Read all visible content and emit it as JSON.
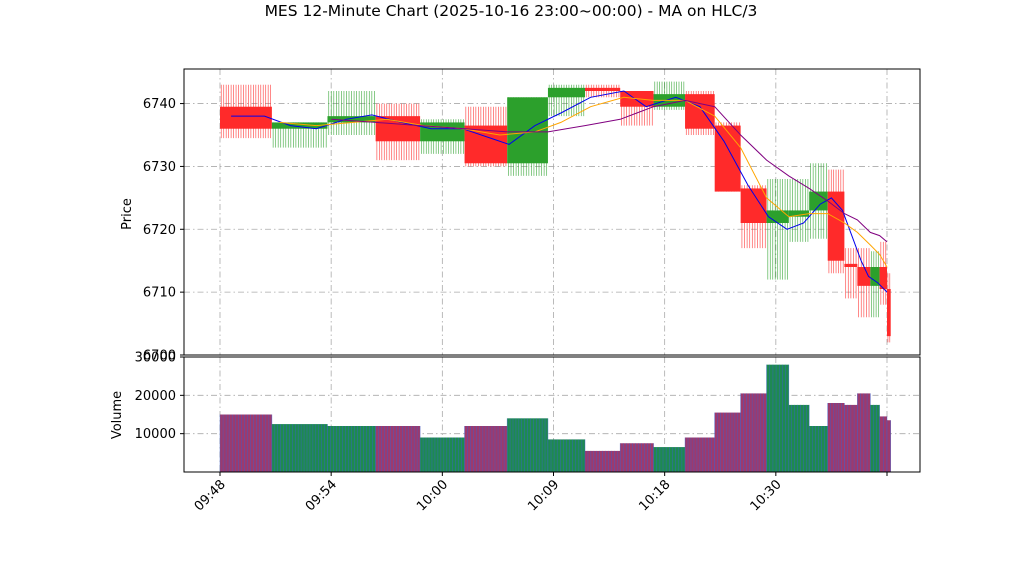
{
  "chart_data": {
    "type": "candlestick",
    "title": "MES 12-Minute Chart (2025-10-16 23:00~00:00) - MA on HLC/3",
    "price_panel": {
      "ylabel": "Price",
      "ylim": [
        6700,
        6745.5
      ],
      "yticks": [
        6700,
        6710,
        6720,
        6730,
        6740
      ],
      "grid": true
    },
    "volume_panel": {
      "ylabel": "Volume",
      "ylim": [
        0,
        30000
      ],
      "yticks": [
        10000,
        20000,
        30000
      ],
      "grid": true
    },
    "x_tick_labels": [
      {
        "label": "09:48",
        "minute": 0
      },
      {
        "label": "09:54",
        "minute": 6
      },
      {
        "label": "10:00",
        "minute": 12
      },
      {
        "label": "10:09",
        "minute": 18
      },
      {
        "label": "10:18",
        "minute": 24
      },
      {
        "label": "10:30",
        "minute": 30
      },
      {
        "label": "",
        "minute": 36
      }
    ],
    "candles": [
      {
        "start": 0.0,
        "end": 2.8,
        "open": 6739.5,
        "high": 6743.0,
        "low": 6734.5,
        "close": 6736.0,
        "volume": 15000
      },
      {
        "start": 2.8,
        "end": 5.8,
        "open": 6736.0,
        "high": 6737.0,
        "low": 6733.0,
        "close": 6737.0,
        "volume": 12500
      },
      {
        "start": 5.8,
        "end": 8.4,
        "open": 6737.0,
        "high": 6742.0,
        "low": 6735.0,
        "close": 6738.0,
        "volume": 12000
      },
      {
        "start": 8.4,
        "end": 10.8,
        "open": 6738.0,
        "high": 6740.0,
        "low": 6731.0,
        "close": 6734.0,
        "volume": 12000
      },
      {
        "start": 10.8,
        "end": 13.2,
        "open": 6734.0,
        "high": 6737.5,
        "low": 6732.0,
        "close": 6737.0,
        "volume": 9000
      },
      {
        "start": 13.2,
        "end": 15.5,
        "open": 6736.5,
        "high": 6739.5,
        "low": 6730.0,
        "close": 6730.5,
        "volume": 12000
      },
      {
        "start": 15.5,
        "end": 17.7,
        "open": 6730.5,
        "high": 6741.0,
        "low": 6728.5,
        "close": 6741.0,
        "volume": 14000
      },
      {
        "start": 17.7,
        "end": 19.7,
        "open": 6741.0,
        "high": 6743.0,
        "low": 6738.0,
        "close": 6742.5,
        "volume": 8500
      },
      {
        "start": 19.7,
        "end": 21.6,
        "open": 6742.5,
        "high": 6743.0,
        "low": 6741.0,
        "close": 6742.0,
        "volume": 5500
      },
      {
        "start": 21.6,
        "end": 23.4,
        "open": 6742.0,
        "high": 6742.0,
        "low": 6736.5,
        "close": 6739.5,
        "volume": 7500
      },
      {
        "start": 23.4,
        "end": 25.1,
        "open": 6739.5,
        "high": 6743.5,
        "low": 6739.0,
        "close": 6741.5,
        "volume": 6500
      },
      {
        "start": 25.1,
        "end": 26.7,
        "open": 6741.5,
        "high": 6742.0,
        "low": 6735.0,
        "close": 6736.0,
        "volume": 9000
      },
      {
        "start": 26.7,
        "end": 28.1,
        "open": 6736.5,
        "high": 6737.0,
        "low": 6726.0,
        "close": 6726.0,
        "volume": 15500
      },
      {
        "start": 28.1,
        "end": 29.5,
        "open": 6726.5,
        "high": 6727.0,
        "low": 6717.0,
        "close": 6721.0,
        "volume": 20500
      },
      {
        "start": 29.5,
        "end": 30.7,
        "open": 6721.0,
        "high": 6728.0,
        "low": 6712.0,
        "close": 6723.0,
        "volume": 28000
      },
      {
        "start": 30.7,
        "end": 31.8,
        "open": 6722.0,
        "high": 6728.0,
        "low": 6718.0,
        "close": 6723.0,
        "volume": 17500
      },
      {
        "start": 31.8,
        "end": 32.8,
        "open": 6723.0,
        "high": 6730.5,
        "low": 6718.5,
        "close": 6726.0,
        "volume": 12000
      },
      {
        "start": 32.8,
        "end": 33.7,
        "open": 6726.0,
        "high": 6729.5,
        "low": 6713.0,
        "close": 6715.0,
        "volume": 18000
      },
      {
        "start": 33.7,
        "end": 34.4,
        "open": 6714.5,
        "high": 6717.0,
        "low": 6709.0,
        "close": 6714.0,
        "volume": 17500
      },
      {
        "start": 34.4,
        "end": 35.1,
        "open": 6714.0,
        "high": 6717.0,
        "low": 6706.0,
        "close": 6711.0,
        "volume": 20500
      },
      {
        "start": 35.1,
        "end": 35.6,
        "open": 6711.0,
        "high": 6716.5,
        "low": 6706.0,
        "close": 6714.0,
        "volume": 17500
      },
      {
        "start": 35.6,
        "end": 36.0,
        "open": 6714.0,
        "high": 6718.0,
        "low": 6708.0,
        "close": 6710.5,
        "volume": 14500
      },
      {
        "start": 36.0,
        "end": 36.2,
        "open": 6710.5,
        "high": 6713.0,
        "low": 6702.0,
        "close": 6703.0,
        "volume": 13500
      }
    ],
    "ma_lines": [
      {
        "color": "#0000ee",
        "points": [
          [
            0.6,
            6738
          ],
          [
            2.4,
            6738
          ],
          [
            3.8,
            6736.5
          ],
          [
            5.2,
            6736
          ],
          [
            6.8,
            6737.5
          ],
          [
            8.2,
            6738.2
          ],
          [
            9.8,
            6737
          ],
          [
            11.4,
            6736
          ],
          [
            13.1,
            6736
          ],
          [
            14.6,
            6734.5
          ],
          [
            15.6,
            6733.5
          ],
          [
            17.0,
            6736.5
          ],
          [
            18.4,
            6738.5
          ],
          [
            20.0,
            6741
          ],
          [
            21.8,
            6742
          ],
          [
            23.0,
            6739.5
          ],
          [
            24.6,
            6741
          ],
          [
            25.9,
            6739.5
          ],
          [
            27.2,
            6734
          ],
          [
            28.5,
            6727
          ],
          [
            29.6,
            6722
          ],
          [
            30.6,
            6720
          ],
          [
            31.5,
            6721
          ],
          [
            32.4,
            6724
          ],
          [
            33.0,
            6725
          ],
          [
            33.6,
            6723
          ],
          [
            34.1,
            6719
          ],
          [
            34.6,
            6715
          ],
          [
            35.0,
            6712.5
          ],
          [
            35.5,
            6711.5
          ],
          [
            36.0,
            6710
          ]
        ]
      },
      {
        "color": "#ffa500",
        "points": [
          [
            3.2,
            6737
          ],
          [
            5.2,
            6736.5
          ],
          [
            7.2,
            6737
          ],
          [
            9.0,
            6737.5
          ],
          [
            11.0,
            6736.5
          ],
          [
            13.1,
            6736
          ],
          [
            15.1,
            6735
          ],
          [
            17.0,
            6735.5
          ],
          [
            18.4,
            6737
          ],
          [
            20.0,
            6739.5
          ],
          [
            21.8,
            6741
          ],
          [
            23.4,
            6740.5
          ],
          [
            25.1,
            6740.5
          ],
          [
            26.7,
            6738
          ],
          [
            28.1,
            6733
          ],
          [
            29.5,
            6725
          ],
          [
            30.7,
            6722
          ],
          [
            31.8,
            6722.5
          ],
          [
            32.8,
            6722.5
          ],
          [
            33.7,
            6721
          ],
          [
            34.4,
            6719.5
          ],
          [
            35.1,
            6717.5
          ],
          [
            35.6,
            6716
          ],
          [
            36.0,
            6714
          ]
        ]
      },
      {
        "color": "#800080",
        "points": [
          [
            6.0,
            6737.5
          ],
          [
            8.4,
            6737
          ],
          [
            10.8,
            6736.5
          ],
          [
            13.2,
            6736
          ],
          [
            15.5,
            6735.5
          ],
          [
            17.7,
            6735.5
          ],
          [
            19.7,
            6736.5
          ],
          [
            21.6,
            6737.5
          ],
          [
            23.4,
            6739.5
          ],
          [
            25.1,
            6740.5
          ],
          [
            26.7,
            6739.5
          ],
          [
            28.1,
            6735
          ],
          [
            29.5,
            6731
          ],
          [
            30.7,
            6728.5
          ],
          [
            31.8,
            6726.5
          ],
          [
            32.8,
            6724.5
          ],
          [
            33.7,
            6722.5
          ],
          [
            34.4,
            6721.5
          ],
          [
            35.1,
            6719.5
          ],
          [
            35.6,
            6719
          ],
          [
            36.0,
            6718
          ]
        ]
      }
    ],
    "colors": {
      "up": "#2ca02c",
      "down": "#ff2a2a",
      "volume_up": "#1e8a50",
      "volume_down": "#9c3a6e",
      "volume_edge": "#3a5fcd"
    }
  }
}
